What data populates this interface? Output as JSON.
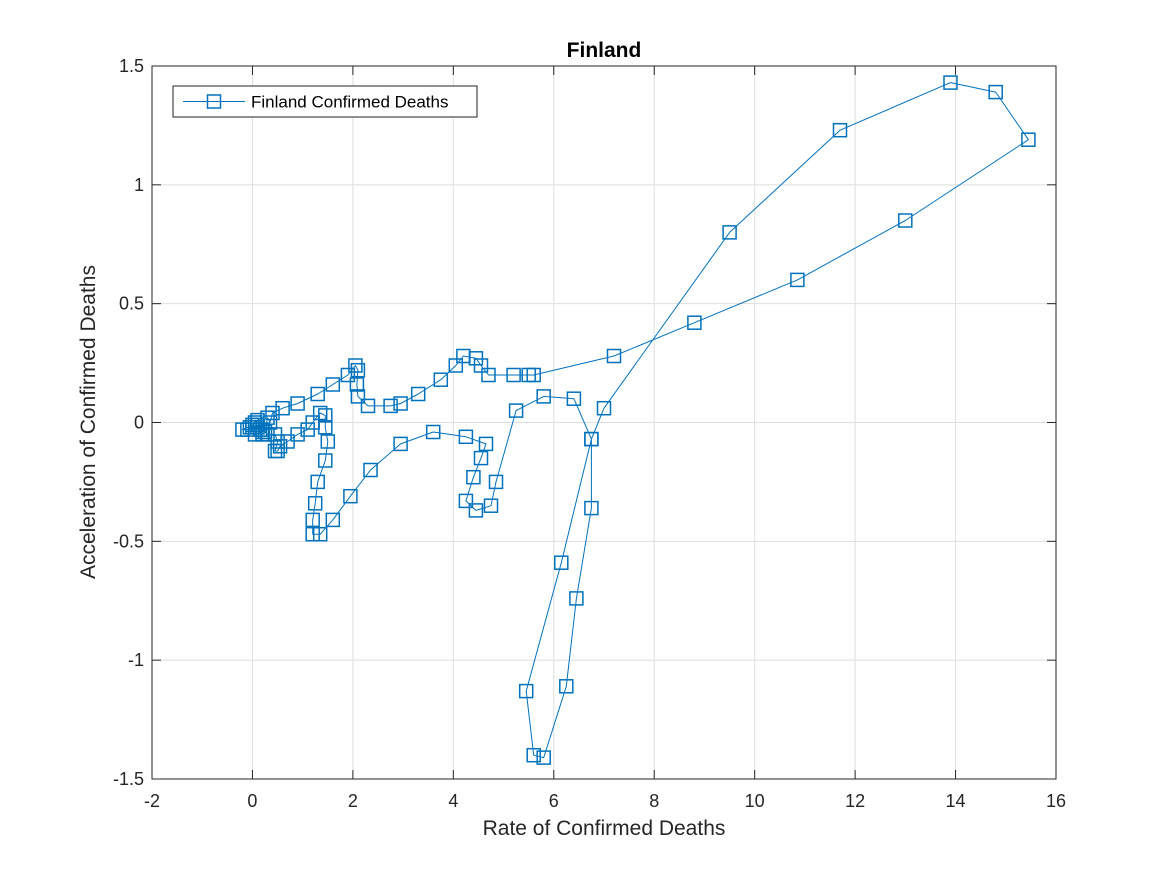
{
  "chart_data": {
    "type": "line",
    "title": "Finland",
    "xlabel": "Rate of Confirmed Deaths",
    "ylabel": "Acceleration of Confirmed Deaths",
    "xlim": [
      -2,
      16
    ],
    "ylim": [
      -1.5,
      1.5
    ],
    "xticks": [
      -2,
      0,
      2,
      4,
      6,
      8,
      10,
      12,
      14,
      16
    ],
    "yticks": [
      -1.5,
      -1,
      -0.5,
      0,
      0.5,
      1,
      1.5
    ],
    "xtick_labels": [
      "-2",
      "0",
      "2",
      "4",
      "6",
      "8",
      "10",
      "12",
      "14",
      "16"
    ],
    "ytick_labels": [
      "-1.5",
      "-1",
      "-0.5",
      "0",
      "0.5",
      "1",
      "1.5"
    ],
    "grid": true,
    "legend_position": "top-left",
    "color": "#0072bd",
    "series": [
      {
        "name": "Finland Confirmed Deaths",
        "marker": "square",
        "points": [
          [
            0.05,
            0.0
          ],
          [
            0.1,
            -0.02
          ],
          [
            0.15,
            -0.03
          ],
          [
            0.2,
            -0.05
          ],
          [
            0.25,
            -0.04
          ],
          [
            0.3,
            0.02
          ],
          [
            0.35,
            0.0
          ],
          [
            0.4,
            0.04
          ],
          [
            0.6,
            0.06
          ],
          [
            0.9,
            0.08
          ],
          [
            1.3,
            0.12
          ],
          [
            1.6,
            0.16
          ],
          [
            1.9,
            0.2
          ],
          [
            2.05,
            0.24
          ],
          [
            2.1,
            0.22
          ],
          [
            2.08,
            0.16
          ],
          [
            2.1,
            0.11
          ],
          [
            2.3,
            0.07
          ],
          [
            2.75,
            0.07
          ],
          [
            2.95,
            0.08
          ],
          [
            3.3,
            0.12
          ],
          [
            3.75,
            0.18
          ],
          [
            4.05,
            0.24
          ],
          [
            4.2,
            0.28
          ],
          [
            4.45,
            0.27
          ],
          [
            4.55,
            0.24
          ],
          [
            4.7,
            0.2
          ],
          [
            5.2,
            0.2
          ],
          [
            5.5,
            0.2
          ],
          [
            5.6,
            0.2
          ],
          [
            7.2,
            0.28
          ],
          [
            8.8,
            0.42
          ],
          [
            10.85,
            0.6
          ],
          [
            13.0,
            0.85
          ],
          [
            15.45,
            1.19
          ],
          [
            14.8,
            1.39
          ],
          [
            13.9,
            1.43
          ],
          [
            11.7,
            1.23
          ],
          [
            9.5,
            0.8
          ],
          [
            7.0,
            0.06
          ],
          [
            6.75,
            -0.07
          ],
          [
            6.75,
            -0.36
          ],
          [
            6.45,
            -0.74
          ],
          [
            6.25,
            -1.11
          ],
          [
            5.8,
            -1.41
          ],
          [
            5.6,
            -1.4
          ],
          [
            5.45,
            -1.13
          ],
          [
            6.15,
            -0.59
          ],
          [
            6.75,
            -0.07
          ],
          [
            6.4,
            0.1
          ],
          [
            5.8,
            0.11
          ],
          [
            5.25,
            0.05
          ],
          [
            4.85,
            -0.25
          ],
          [
            4.75,
            -0.35
          ],
          [
            4.45,
            -0.37
          ],
          [
            4.25,
            -0.33
          ],
          [
            4.4,
            -0.23
          ],
          [
            4.55,
            -0.15
          ],
          [
            4.65,
            -0.09
          ],
          [
            4.25,
            -0.06
          ],
          [
            3.6,
            -0.04
          ],
          [
            2.95,
            -0.09
          ],
          [
            2.35,
            -0.2
          ],
          [
            1.95,
            -0.31
          ],
          [
            1.6,
            -0.41
          ],
          [
            1.35,
            -0.47
          ],
          [
            1.2,
            -0.47
          ],
          [
            1.2,
            -0.41
          ],
          [
            1.25,
            -0.34
          ],
          [
            1.3,
            -0.25
          ],
          [
            1.45,
            -0.16
          ],
          [
            1.5,
            -0.08
          ],
          [
            1.45,
            -0.02
          ],
          [
            1.45,
            0.03
          ],
          [
            1.35,
            0.04
          ],
          [
            1.2,
            0.0
          ],
          [
            1.1,
            -0.03
          ],
          [
            0.9,
            -0.05
          ],
          [
            0.7,
            -0.08
          ],
          [
            0.55,
            -0.1
          ],
          [
            0.5,
            -0.12
          ],
          [
            0.45,
            -0.12
          ],
          [
            0.5,
            -0.08
          ],
          [
            0.45,
            -0.05
          ],
          [
            0.3,
            -0.05
          ],
          [
            0.2,
            -0.03
          ],
          [
            0.1,
            -0.01
          ],
          [
            0.0,
            -0.02
          ],
          [
            -0.1,
            -0.03
          ],
          [
            -0.2,
            -0.03
          ],
          [
            0.0,
            -0.01
          ],
          [
            0.1,
            0.01
          ],
          [
            0.2,
            -0.04
          ],
          [
            0.05,
            -0.05
          ],
          [
            -0.05,
            -0.02
          ]
        ]
      }
    ]
  }
}
